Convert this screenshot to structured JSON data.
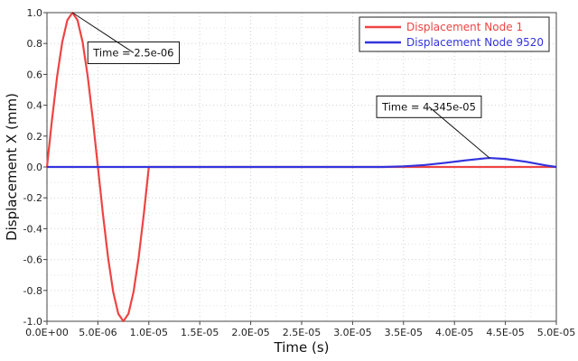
{
  "chart_data": {
    "type": "line",
    "xlabel": "Time (s)",
    "ylabel": "Displacement X (mm)",
    "xlim": [
      0,
      5e-05
    ],
    "ylim": [
      -1.0,
      1.0
    ],
    "grid": true,
    "legend_position": "top-right",
    "x_ticks": [
      0,
      5e-06,
      1e-05,
      1.5e-05,
      2e-05,
      2.5e-05,
      3e-05,
      3.5e-05,
      4e-05,
      4.5e-05,
      5e-05
    ],
    "x_tick_labels": [
      "0.0E+00",
      "5.0E-06",
      "1.0E-05",
      "1.5E-05",
      "2.0E-05",
      "2.5E-05",
      "3.0E-05",
      "3.5E-05",
      "4.0E-05",
      "4.5E-05",
      "5.0E-05"
    ],
    "y_ticks": [
      1.0,
      0.8,
      0.6,
      0.4,
      0.2,
      0.0,
      -0.2,
      -0.4,
      -0.6,
      -0.8,
      -1.0
    ],
    "y_tick_labels": [
      "1.0",
      "0.8",
      "0.6",
      "0.4",
      "0.2",
      "0.0",
      "-0.2",
      "-0.4",
      "-0.6",
      "-0.8",
      "-1.0"
    ],
    "series": [
      {
        "name": "Displacement Node 1",
        "color": "#ee4444",
        "x": [
          0,
          5e-07,
          1e-06,
          1.5e-06,
          2e-06,
          2.5e-06,
          3e-06,
          3.5e-06,
          4e-06,
          4.5e-06,
          5e-06,
          5.5e-06,
          6e-06,
          6.5e-06,
          7e-06,
          7.5e-06,
          8e-06,
          8.5e-06,
          9e-06,
          9.5e-06,
          1e-05,
          2e-05,
          3e-05,
          4e-05,
          5e-05
        ],
        "y": [
          0,
          0.309,
          0.588,
          0.809,
          0.951,
          1.0,
          0.951,
          0.809,
          0.588,
          0.309,
          0,
          -0.309,
          -0.588,
          -0.809,
          -0.951,
          -1.0,
          -0.951,
          -0.809,
          -0.588,
          -0.309,
          0,
          0,
          0,
          0,
          0
        ]
      },
      {
        "name": "Displacement Node 9520",
        "color": "#3333dd",
        "x": [
          0,
          3.3e-05,
          3.5e-05,
          3.7e-05,
          3.9e-05,
          4.1e-05,
          4.3e-05,
          4.345e-05,
          4.5e-05,
          4.7e-05,
          4.9e-05,
          5e-05
        ],
        "y": [
          0,
          0,
          0.004,
          0.012,
          0.026,
          0.042,
          0.056,
          0.058,
          0.052,
          0.034,
          0.01,
          0
        ]
      }
    ],
    "annotations": [
      {
        "text": "Time = 2.5e-06",
        "x": 2.5e-06,
        "y": 1.0,
        "box_anchor_x": 8.5e-06,
        "box_anchor_y": 0.74
      },
      {
        "text": "Time = 4.345e-05",
        "x": 4.345e-05,
        "y": 0.058,
        "box_anchor_x": 3.75e-05,
        "box_anchor_y": 0.39
      }
    ]
  }
}
